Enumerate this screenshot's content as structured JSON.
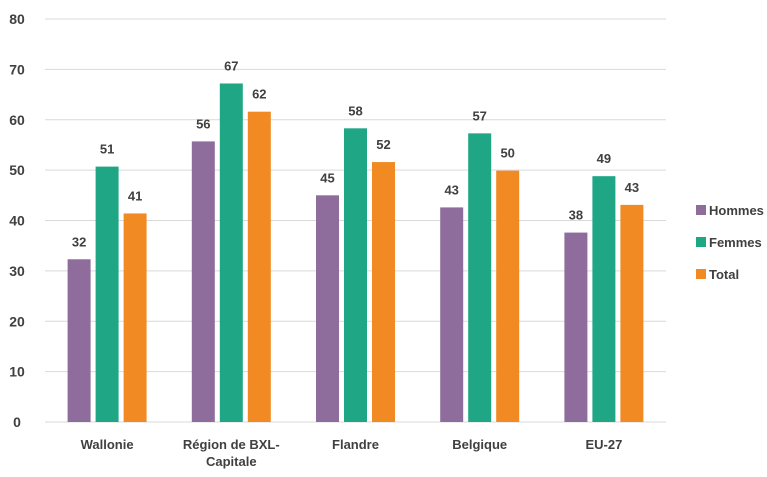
{
  "chart_data": {
    "type": "bar",
    "title": "",
    "xlabel": "",
    "ylabel": "",
    "ylim": [
      0,
      80
    ],
    "yticks": [
      0,
      10,
      20,
      30,
      40,
      50,
      60,
      70,
      80
    ],
    "grid": true,
    "legend_position": "right",
    "categories": [
      [
        "Wallonie"
      ],
      [
        "Région de BXL-",
        "Capitale"
      ],
      [
        "Flandre"
      ],
      [
        "Belgique"
      ],
      [
        "EU-27"
      ]
    ],
    "series": [
      {
        "name": "Hommes",
        "color": "#8e6c9c",
        "values": [
          32,
          56,
          45,
          43,
          38
        ],
        "bar_values": [
          32.3,
          55.7,
          45.0,
          42.6,
          37.6
        ]
      },
      {
        "name": "Femmes",
        "color": "#1fa785",
        "values": [
          51,
          67,
          58,
          57,
          49
        ],
        "bar_values": [
          50.7,
          67.2,
          58.3,
          57.3,
          48.8
        ]
      },
      {
        "name": "Total",
        "color": "#f28a24",
        "values": [
          41,
          62,
          52,
          50,
          43
        ],
        "bar_values": [
          41.4,
          61.6,
          51.6,
          49.9,
          43.1
        ]
      }
    ]
  }
}
